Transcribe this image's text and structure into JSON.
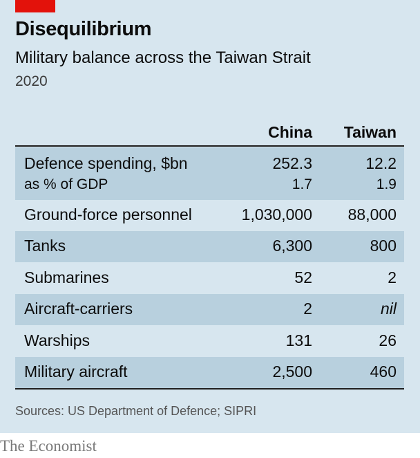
{
  "header": {
    "title": "Disequilibrium",
    "subtitle": "Military balance across the Taiwan Strait",
    "year": "2020"
  },
  "colors": {
    "accent_red": "#e3120b",
    "panel_bg": "#d7e6ef",
    "row_shade": "#b8d0de"
  },
  "chart_data": {
    "type": "table",
    "columns": [
      "China",
      "Taiwan"
    ],
    "rows": [
      {
        "label": "Defence spending, $bn",
        "china": "252.3",
        "taiwan": "12.2",
        "sub": {
          "label": "as % of GDP",
          "china": "1.7",
          "taiwan": "1.9"
        }
      },
      {
        "label": "Ground-force personnel",
        "china": "1,030,000",
        "taiwan": "88,000"
      },
      {
        "label": "Tanks",
        "china": "6,300",
        "taiwan": "800"
      },
      {
        "label": "Submarines",
        "china": "52",
        "taiwan": "2"
      },
      {
        "label": "Aircraft-carriers",
        "china": "2",
        "taiwan": "nil"
      },
      {
        "label": "Warships",
        "china": "131",
        "taiwan": "26"
      },
      {
        "label": "Military aircraft",
        "china": "2,500",
        "taiwan": "460"
      }
    ]
  },
  "footer": {
    "source": "Sources: US Department of Defence; SIPRI",
    "brand": "The Economist"
  }
}
